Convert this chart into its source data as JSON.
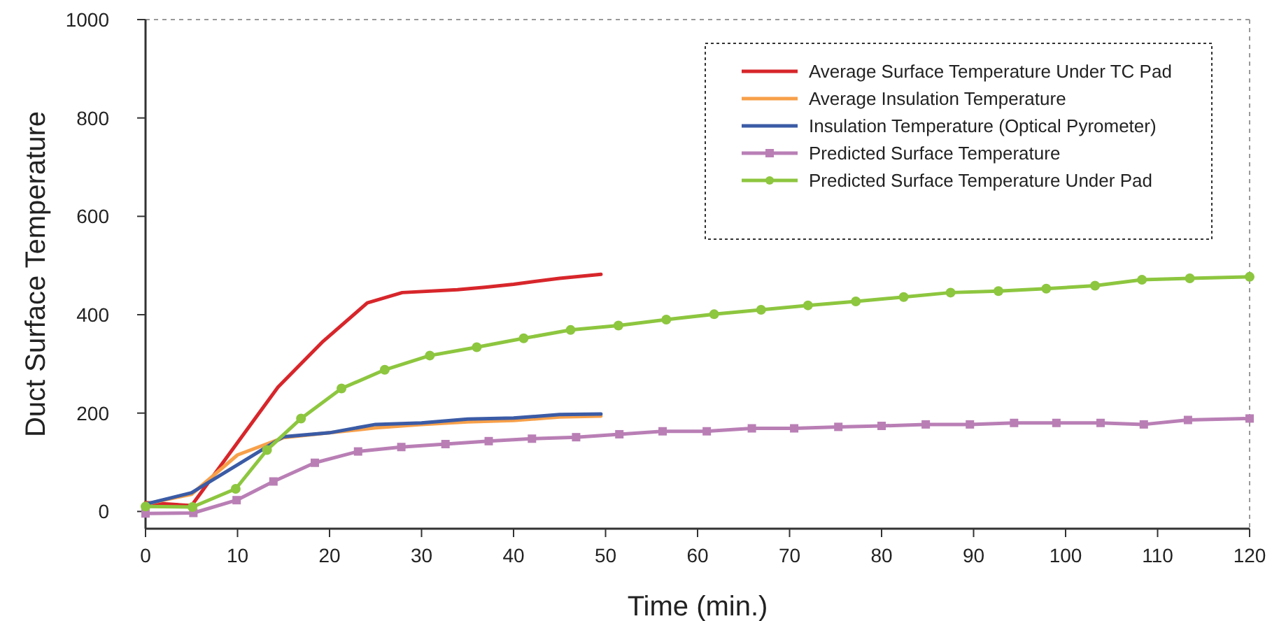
{
  "chart_data": {
    "type": "line",
    "xlabel": "Time (min.)",
    "ylabel": "Duct Surface Temperature",
    "xlim": [
      0,
      120
    ],
    "xticks": [
      0,
      10,
      20,
      30,
      40,
      50,
      60,
      70,
      80,
      90,
      100,
      110,
      120
    ],
    "ylim": [
      -35,
      1000
    ],
    "yticks": [
      0,
      200,
      400,
      600,
      800,
      1000
    ],
    "grid": false,
    "legend": "top right",
    "series": [
      {
        "name": "Average Surface Temperature Under TC Pad",
        "color": "#d7262b",
        "marker": "none",
        "x": [
          0,
          5,
          14.4,
          19.3,
          24.1,
          27.9,
          33.9,
          36.9,
          40,
          45,
          49.5
        ],
        "values": [
          18,
          12,
          253,
          346,
          424,
          445,
          451,
          456,
          462,
          474,
          482
        ]
      },
      {
        "name": "Average Insulation Temperature",
        "color": "#f7a04a",
        "marker": "none",
        "x": [
          0,
          5,
          10,
          15,
          20,
          25,
          30,
          35,
          40,
          45,
          49.5
        ],
        "values": [
          15,
          35,
          115,
          150,
          160,
          170,
          177,
          182,
          185,
          192,
          194
        ]
      },
      {
        "name": "Insulation Temperature (Optical Pyrometer)",
        "color": "#3b5ba5",
        "marker": "none",
        "x": [
          0,
          5,
          10,
          15,
          20,
          25,
          30,
          35,
          40,
          45,
          49.5
        ],
        "values": [
          15,
          38,
          95,
          152,
          160,
          177,
          180,
          188,
          190,
          197,
          198
        ]
      },
      {
        "name": "Predicted Surface Temperature",
        "color": "#b97fb5",
        "marker": "square",
        "x": [
          0,
          5.2,
          9.9,
          13.9,
          18.4,
          23.1,
          27.8,
          32.6,
          37.3,
          42,
          46.8,
          51.5,
          56.2,
          61,
          65.9,
          70.5,
          75.3,
          80,
          84.8,
          89.6,
          94.4,
          99,
          103.8,
          108.5,
          113.3,
          120
        ],
        "values": [
          -4,
          -3,
          23,
          61,
          99,
          122,
          131,
          137,
          143,
          148,
          151,
          157,
          163,
          163,
          169,
          169,
          172,
          174,
          177,
          177,
          180,
          180,
          180,
          177,
          186,
          189
        ]
      },
      {
        "name": "Predicted Surface Temperature Under Pad",
        "color": "#8dc63f",
        "marker": "circle",
        "x": [
          0,
          5.1,
          9.8,
          13.2,
          16.9,
          21.3,
          26,
          30.9,
          36,
          41.1,
          46.2,
          51.4,
          56.6,
          61.8,
          66.9,
          72,
          77.2,
          82.4,
          87.5,
          92.7,
          97.9,
          103.2,
          108.3,
          113.5,
          120
        ],
        "values": [
          10,
          9,
          46,
          125,
          189,
          250,
          288,
          317,
          334,
          352,
          369,
          378,
          390,
          401,
          410,
          419,
          427,
          436,
          445,
          448,
          453,
          459,
          471,
          474,
          477
        ]
      }
    ]
  }
}
